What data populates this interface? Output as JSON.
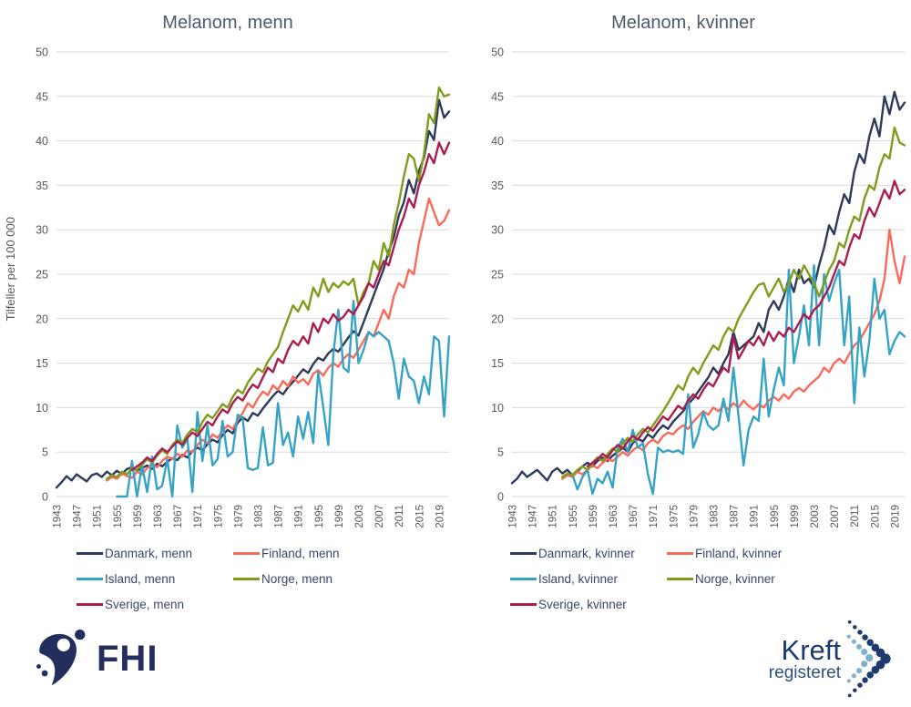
{
  "colors": {
    "grid": "#d9d9d9",
    "tick_text": "#595959",
    "title_text": "#4e5a6b",
    "legend_text": "#39466b",
    "danmark": "#2e3a5c",
    "finland": "#fa6a5a",
    "island": "#35a3c6",
    "norge": "#7f9d1d",
    "sverige": "#a91e50",
    "fhi_navy": "#232e5c",
    "kreft_navy": "#1e3a6e",
    "kreft_light": "#7fb0cc"
  },
  "logos": {
    "fhi": {
      "text": "FHI",
      "icon": "fhi-swoosh-icon"
    },
    "kreft": {
      "line1": "Kreft",
      "line2": "registeret",
      "icon": "dotted-chevron-icon"
    }
  },
  "chart_data": [
    {
      "type": "line",
      "title": "Melanom, menn",
      "ylabel": "Tilfeller per 100 000",
      "xlabel": "",
      "ylim": [
        0,
        50
      ],
      "ytick_step": 5,
      "x_start": 1943,
      "x_end": 2021,
      "xticks": [
        1943,
        1947,
        1951,
        1955,
        1959,
        1963,
        1967,
        1971,
        1975,
        1979,
        1983,
        1987,
        1991,
        1995,
        1999,
        2003,
        2007,
        2011,
        2015,
        2019
      ],
      "grid": true,
      "legend_position": "bottom",
      "series": [
        {
          "name": "Danmark, menn",
          "color": "#2e3a5c",
          "start": 1943,
          "values": [
            1.0,
            1.6,
            2.3,
            1.8,
            2.5,
            2.1,
            1.7,
            2.4,
            2.6,
            2.2,
            2.8,
            2.4,
            2.9,
            2.5,
            3.1,
            3.3,
            2.9,
            3.2,
            3.5,
            3.1,
            3.7,
            3.4,
            3.9,
            4.3,
            4.1,
            4.7,
            4.4,
            5.1,
            5.5,
            5.2,
            5.9,
            6.4,
            6.1,
            6.9,
            7.5,
            7.1,
            8.3,
            8.9,
            8.5,
            9.4,
            9.1,
            9.9,
            10.6,
            11.3,
            11.9,
            11.5,
            12.3,
            12.9,
            13.6,
            14.3,
            13.9,
            14.9,
            15.6,
            15.3,
            16.1,
            16.6,
            16.3,
            17.1,
            17.9,
            18.6,
            18.1,
            19.6,
            21.1,
            22.6,
            24.1,
            25.6,
            27.6,
            29.1,
            31.6,
            33.1,
            35.6,
            34.1,
            36.6,
            38.1,
            41.1,
            40.1,
            44.6,
            42.6,
            43.3
          ]
        },
        {
          "name": "Finland, menn",
          "color": "#fa6a5a",
          "start": 1953,
          "values": [
            1.8,
            2.2,
            2.0,
            2.6,
            2.3,
            2.1,
            2.8,
            2.5,
            3.2,
            3.6,
            3.3,
            4.0,
            4.5,
            4.2,
            4.8,
            4.5,
            5.2,
            5.0,
            5.8,
            6.4,
            6.0,
            7.0,
            6.6,
            7.4,
            8.0,
            7.6,
            8.6,
            9.4,
            10.5,
            10.0,
            11.0,
            11.8,
            11.4,
            12.5,
            12.0,
            13.0,
            12.4,
            13.5,
            12.8,
            13.2,
            12.6,
            13.8,
            14.2,
            13.6,
            14.5,
            15.0,
            14.6,
            15.5,
            16.0,
            15.6,
            16.5,
            17.5,
            18.5,
            18.0,
            19.5,
            21.0,
            20.0,
            22.5,
            24.0,
            23.5,
            25.5,
            25.0,
            28.5,
            31.0,
            33.5,
            32.0,
            30.5,
            31.0,
            32.2
          ]
        },
        {
          "name": "Island, menn",
          "color": "#35a3c6",
          "start": 1955,
          "values": [
            0,
            0,
            0,
            4.0,
            0,
            3.5,
            0.5,
            4.5,
            0.8,
            1.2,
            4.2,
            0,
            8.0,
            5.5,
            6.5,
            0.5,
            9.5,
            4.0,
            8.0,
            3.5,
            4.2,
            8.5,
            4.5,
            5.0,
            9.2,
            8.8,
            3.2,
            3.0,
            3.2,
            7.8,
            3.5,
            3.8,
            10.5,
            5.8,
            7.2,
            4.5,
            9.0,
            6.5,
            9.5,
            6.0,
            14.0,
            10.0,
            5.8,
            16.0,
            21.0,
            14.5,
            14.0,
            22.0,
            15.0,
            16.5,
            18.5,
            18.0,
            18.5,
            18.0,
            17.5,
            15.0,
            11.0,
            15.5,
            13.5,
            13.0,
            10.5,
            13.5,
            11.5,
            18.0,
            17.5,
            9.0,
            18.0
          ]
        },
        {
          "name": "Norge, menn",
          "color": "#7f9d1d",
          "start": 1953,
          "values": [
            2.0,
            2.4,
            2.2,
            2.8,
            2.5,
            3.2,
            3.0,
            3.6,
            4.2,
            3.8,
            4.6,
            5.2,
            4.8,
            5.8,
            6.4,
            6.0,
            7.0,
            7.6,
            7.2,
            8.4,
            9.2,
            8.8,
            9.6,
            10.4,
            10.0,
            11.2,
            12.0,
            11.6,
            12.8,
            13.6,
            14.4,
            14.0,
            15.2,
            16.0,
            16.8,
            18.5,
            20.0,
            21.5,
            20.8,
            22.0,
            21.0,
            23.5,
            22.5,
            24.5,
            23.0,
            24.0,
            23.5,
            24.2,
            23.8,
            24.5,
            21.5,
            23.0,
            24.0,
            26.5,
            25.5,
            28.5,
            27.0,
            30.5,
            33.0,
            36.0,
            38.5,
            38.0,
            35.5,
            38.5,
            43.0,
            42.0,
            46.0,
            45.0,
            45.2
          ]
        },
        {
          "name": "Sverige, menn",
          "color": "#a91e50",
          "start": 1958,
          "values": [
            3.0,
            3.4,
            3.8,
            4.4,
            4.0,
            4.8,
            5.4,
            5.0,
            5.6,
            6.2,
            5.8,
            6.6,
            7.2,
            6.8,
            7.6,
            8.4,
            8.0,
            9.0,
            9.8,
            9.4,
            10.5,
            11.2,
            10.8,
            11.8,
            12.6,
            12.2,
            13.4,
            14.5,
            14.0,
            15.5,
            15.0,
            16.5,
            17.5,
            17.0,
            18.0,
            17.2,
            19.5,
            18.5,
            20.0,
            19.5,
            20.5,
            19.8,
            20.2,
            21.0,
            20.5,
            21.5,
            22.5,
            24.0,
            23.5,
            25.0,
            26.5,
            26.0,
            28.0,
            30.0,
            31.5,
            33.5,
            32.5,
            35.0,
            36.5,
            38.5,
            37.5,
            39.8,
            38.5,
            39.8
          ]
        }
      ]
    },
    {
      "type": "line",
      "title": "Melanom, kvinner",
      "ylabel": "",
      "xlabel": "",
      "ylim": [
        0,
        50
      ],
      "ytick_step": 5,
      "x_start": 1943,
      "x_end": 2021,
      "xticks": [
        1943,
        1947,
        1951,
        1955,
        1959,
        1963,
        1967,
        1971,
        1975,
        1979,
        1983,
        1987,
        1991,
        1995,
        1999,
        2003,
        2007,
        2011,
        2015,
        2019
      ],
      "grid": true,
      "legend_position": "bottom",
      "series": [
        {
          "name": "Danmark, kvinner",
          "color": "#2e3a5c",
          "start": 1943,
          "values": [
            1.5,
            2.0,
            2.8,
            2.2,
            2.6,
            3.0,
            2.4,
            1.8,
            2.8,
            3.2,
            2.6,
            3.0,
            2.4,
            2.8,
            3.4,
            3.8,
            3.4,
            4.0,
            4.4,
            4.0,
            4.6,
            5.0,
            5.5,
            5.0,
            6.0,
            6.5,
            6.2,
            7.0,
            6.6,
            7.4,
            8.0,
            7.6,
            8.4,
            9.0,
            9.6,
            10.4,
            11.0,
            11.8,
            12.6,
            13.4,
            14.5,
            13.8,
            15.0,
            16.0,
            18.5,
            16.5,
            17.0,
            17.5,
            18.0,
            19.5,
            18.5,
            21.0,
            22.0,
            21.0,
            22.5,
            24.5,
            23.0,
            25.5,
            24.0,
            24.5,
            23.5,
            26.0,
            28.0,
            30.5,
            29.5,
            32.0,
            34.0,
            33.0,
            36.5,
            38.5,
            37.5,
            40.5,
            42.5,
            40.5,
            45.0,
            43.0,
            45.5,
            43.5,
            44.3
          ]
        },
        {
          "name": "Finland, kvinner",
          "color": "#fa6a5a",
          "start": 1953,
          "values": [
            2.0,
            2.4,
            2.2,
            2.8,
            2.5,
            3.0,
            3.5,
            3.2,
            3.8,
            4.2,
            4.0,
            4.5,
            5.0,
            4.6,
            5.2,
            5.6,
            5.2,
            6.0,
            6.4,
            6.0,
            6.8,
            7.2,
            7.0,
            7.6,
            8.0,
            7.6,
            8.4,
            9.0,
            9.6,
            9.2,
            10.0,
            9.6,
            10.2,
            9.8,
            10.5,
            10.0,
            10.8,
            10.2,
            9.8,
            10.4,
            10.0,
            10.8,
            11.2,
            10.8,
            11.5,
            11.0,
            11.8,
            12.2,
            11.8,
            12.5,
            13.0,
            13.5,
            14.5,
            14.0,
            15.0,
            15.5,
            15.0,
            16.0,
            17.0,
            17.5,
            18.5,
            19.5,
            20.5,
            22.0,
            24.5,
            30.0,
            26.5,
            24.0,
            27.0
          ]
        },
        {
          "name": "Island, kvinner",
          "color": "#35a3c6",
          "start": 1955,
          "values": [
            2.5,
            0.8,
            2.2,
            3.0,
            0.3,
            2.0,
            1.5,
            2.8,
            1.0,
            5.5,
            6.5,
            5.0,
            7.5,
            5.5,
            6.0,
            2.5,
            0.3,
            5.5,
            5.0,
            5.2,
            5.0,
            5.2,
            4.8,
            11.5,
            5.5,
            7.0,
            9.5,
            8.0,
            7.5,
            8.0,
            11.0,
            8.5,
            14.5,
            9.0,
            3.5,
            7.5,
            9.0,
            8.5,
            15.5,
            9.0,
            12.0,
            14.5,
            12.5,
            25.5,
            15.0,
            18.0,
            21.5,
            17.0,
            26.0,
            17.0,
            25.0,
            22.0,
            24.0,
            25.5,
            17.0,
            22.5,
            10.5,
            19.0,
            13.5,
            17.5,
            24.5,
            20.0,
            21.0,
            16.0,
            17.5,
            18.5,
            18.0
          ]
        },
        {
          "name": "Norge, kvinner",
          "color": "#7f9d1d",
          "start": 1953,
          "values": [
            2.2,
            2.6,
            2.4,
            3.0,
            3.4,
            3.0,
            3.8,
            4.4,
            4.0,
            4.8,
            5.4,
            5.0,
            6.0,
            6.6,
            6.2,
            7.0,
            7.6,
            7.2,
            8.0,
            8.8,
            9.6,
            10.5,
            11.5,
            12.5,
            12.0,
            13.5,
            14.5,
            13.8,
            15.0,
            16.0,
            17.0,
            16.5,
            18.0,
            19.0,
            18.5,
            20.0,
            21.0,
            22.0,
            23.0,
            23.8,
            24.0,
            22.5,
            23.5,
            24.5,
            23.0,
            24.0,
            25.5,
            24.5,
            26.0,
            25.0,
            24.0,
            22.5,
            24.0,
            25.5,
            26.5,
            28.5,
            28.0,
            30.0,
            31.5,
            31.0,
            33.5,
            35.0,
            34.5,
            37.0,
            38.5,
            38.0,
            41.5,
            39.8,
            39.5
          ]
        },
        {
          "name": "Sverige, kvinner",
          "color": "#a91e50",
          "start": 1958,
          "values": [
            3.4,
            3.8,
            4.2,
            4.8,
            4.4,
            5.2,
            5.8,
            5.4,
            6.2,
            6.8,
            6.4,
            7.2,
            7.8,
            7.4,
            8.2,
            9.0,
            8.6,
            9.4,
            10.2,
            9.8,
            10.8,
            11.5,
            11.0,
            12.0,
            12.8,
            12.4,
            13.5,
            14.5,
            14.0,
            18.0,
            15.5,
            16.5,
            17.5,
            17.0,
            18.0,
            17.0,
            18.5,
            17.5,
            18.5,
            18.0,
            19.0,
            18.5,
            19.5,
            20.5,
            20.0,
            21.0,
            21.5,
            22.5,
            23.5,
            25.0,
            26.5,
            26.0,
            28.0,
            29.5,
            29.0,
            31.0,
            32.5,
            31.5,
            33.0,
            34.5,
            33.5,
            35.5,
            34.0,
            34.5
          ]
        }
      ]
    }
  ]
}
